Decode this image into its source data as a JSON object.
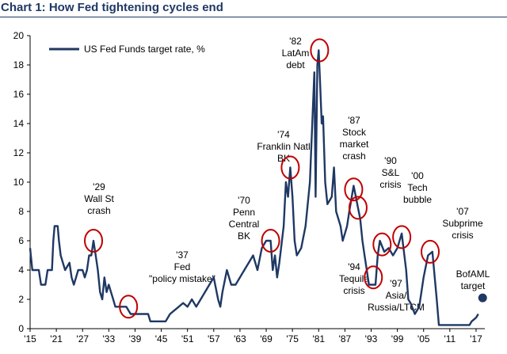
{
  "title": "Chart 1: How Fed tightening cycles end",
  "colors": {
    "series": "#1f3864",
    "circle": "#c00000",
    "title": "#1f3864"
  },
  "chart_data": {
    "type": "line",
    "title": "Chart 1: How Fed tightening cycles end",
    "xlabel": "",
    "ylabel": "",
    "xlim": [
      1915,
      2019
    ],
    "ylim": [
      0,
      20
    ],
    "yticks": [
      "0",
      "2",
      "4",
      "6",
      "8",
      "10",
      "12",
      "14",
      "16",
      "18",
      "20"
    ],
    "xticks": [
      {
        "x": 1915,
        "label": "'15"
      },
      {
        "x": 1921,
        "label": "'21"
      },
      {
        "x": 1927,
        "label": "'27"
      },
      {
        "x": 1933,
        "label": "'33"
      },
      {
        "x": 1939,
        "label": "'39"
      },
      {
        "x": 1945,
        "label": "'45"
      },
      {
        "x": 1951,
        "label": "'51"
      },
      {
        "x": 1957,
        "label": "'57"
      },
      {
        "x": 1963,
        "label": "'63"
      },
      {
        "x": 1969,
        "label": "'69"
      },
      {
        "x": 1975,
        "label": "'75"
      },
      {
        "x": 1981,
        "label": "'81"
      },
      {
        "x": 1987,
        "label": "'87"
      },
      {
        "x": 1993,
        "label": "'93"
      },
      {
        "x": 1999,
        "label": "'99"
      },
      {
        "x": 2005,
        "label": "'05"
      },
      {
        "x": 2011,
        "label": "'11"
      },
      {
        "x": 2017,
        "label": "'17"
      }
    ],
    "grid": false,
    "legend": {
      "position": "top-left",
      "entries": [
        "US Fed Funds target rate, %"
      ]
    },
    "series": [
      {
        "name": "US Fed Funds target rate, %",
        "points": [
          [
            1915,
            5.5
          ],
          [
            1915.5,
            4
          ],
          [
            1917,
            4
          ],
          [
            1917.5,
            3
          ],
          [
            1918.5,
            3
          ],
          [
            1919,
            4
          ],
          [
            1920,
            4
          ],
          [
            1920.3,
            6
          ],
          [
            1920.6,
            7
          ],
          [
            1921.3,
            7
          ],
          [
            1921.6,
            6
          ],
          [
            1922,
            5
          ],
          [
            1922.5,
            4.5
          ],
          [
            1923,
            4
          ],
          [
            1924,
            4.5
          ],
          [
            1924.5,
            3.5
          ],
          [
            1925,
            3
          ],
          [
            1925.5,
            3.5
          ],
          [
            1926,
            4
          ],
          [
            1927,
            4
          ],
          [
            1927.5,
            3.5
          ],
          [
            1928,
            4
          ],
          [
            1928.5,
            5
          ],
          [
            1929,
            5
          ],
          [
            1929.5,
            6
          ],
          [
            1930,
            5
          ],
          [
            1930.5,
            4
          ],
          [
            1931,
            2.5
          ],
          [
            1931.5,
            2
          ],
          [
            1932,
            3.5
          ],
          [
            1932.5,
            2.5
          ],
          [
            1933,
            3
          ],
          [
            1933.5,
            2.5
          ],
          [
            1934,
            2
          ],
          [
            1934.5,
            1.5
          ],
          [
            1936,
            1.5
          ],
          [
            1937,
            1.5
          ],
          [
            1938,
            1
          ],
          [
            1939,
            1
          ],
          [
            1941,
            1
          ],
          [
            1942,
            1
          ],
          [
            1942.5,
            0.5
          ],
          [
            1946,
            0.5
          ],
          [
            1947,
            1
          ],
          [
            1948,
            1.25
          ],
          [
            1949,
            1.5
          ],
          [
            1950,
            1.75
          ],
          [
            1951,
            1.5
          ],
          [
            1952,
            2
          ],
          [
            1953,
            1.5
          ],
          [
            1954,
            2
          ],
          [
            1955,
            2.5
          ],
          [
            1956,
            3
          ],
          [
            1957,
            3.5
          ],
          [
            1958,
            2
          ],
          [
            1958.5,
            1.5
          ],
          [
            1959,
            2.5
          ],
          [
            1960,
            4
          ],
          [
            1961,
            3
          ],
          [
            1962,
            3
          ],
          [
            1963,
            3.5
          ],
          [
            1964,
            4
          ],
          [
            1965,
            4.5
          ],
          [
            1966,
            5
          ],
          [
            1967,
            4
          ],
          [
            1968,
            5.5
          ],
          [
            1969,
            6
          ],
          [
            1970,
            6
          ],
          [
            1970.5,
            4
          ],
          [
            1971,
            5
          ],
          [
            1971.5,
            3.5
          ],
          [
            1972,
            4.5
          ],
          [
            1973,
            7
          ],
          [
            1973.5,
            10
          ],
          [
            1974,
            9
          ],
          [
            1974.5,
            11
          ],
          [
            1975,
            9
          ],
          [
            1975.5,
            6
          ],
          [
            1976,
            5
          ],
          [
            1977,
            5.5
          ],
          [
            1978,
            7
          ],
          [
            1979,
            10
          ],
          [
            1980,
            17.5
          ],
          [
            1980.3,
            9
          ],
          [
            1980.7,
            18
          ],
          [
            1981,
            19
          ],
          [
            1981.3,
            17
          ],
          [
            1981.7,
            14
          ],
          [
            1982,
            14.5
          ],
          [
            1982.5,
            10
          ],
          [
            1983,
            8.5
          ],
          [
            1984,
            9
          ],
          [
            1984.5,
            11
          ],
          [
            1985,
            8
          ],
          [
            1986,
            7
          ],
          [
            1986.5,
            6
          ],
          [
            1987,
            6.5
          ],
          [
            1987.5,
            7
          ],
          [
            1988,
            8
          ],
          [
            1989,
            9.75
          ],
          [
            1989.5,
            9
          ],
          [
            1990,
            8.25
          ],
          [
            1990.5,
            7.5
          ],
          [
            1991,
            6
          ],
          [
            1991.5,
            5
          ],
          [
            1992,
            4
          ],
          [
            1992.5,
            3
          ],
          [
            1994,
            3
          ],
          [
            1994.5,
            5
          ],
          [
            1995,
            6
          ],
          [
            1996,
            5.25
          ],
          [
            1997,
            5.5
          ],
          [
            1998,
            5
          ],
          [
            1999,
            5.5
          ],
          [
            2000,
            6.5
          ],
          [
            2001,
            4
          ],
          [
            2001.5,
            2
          ],
          [
            2002,
            1.75
          ],
          [
            2003,
            1
          ],
          [
            2004,
            1.5
          ],
          [
            2005,
            3.5
          ],
          [
            2006,
            5
          ],
          [
            2007,
            5.25
          ],
          [
            2008,
            2
          ],
          [
            2008.5,
            0.25
          ],
          [
            2015.5,
            0.25
          ],
          [
            2016,
            0.5
          ],
          [
            2017,
            0.75
          ],
          [
            2017.5,
            1
          ]
        ]
      }
    ],
    "highlights": [
      {
        "x": 1929.5,
        "y": 6,
        "label": [
          "'29",
          "Wall St",
          "crash"
        ]
      },
      {
        "x": 1937.5,
        "y": 1.5,
        "label": [
          "'37",
          "Fed",
          "\"policy mistake\""
        ]
      },
      {
        "x": 1970,
        "y": 6,
        "label": [
          "'70",
          "Penn",
          "Central",
          "BK"
        ]
      },
      {
        "x": 1974.5,
        "y": 11,
        "label": [
          "'74",
          "Franklin Natl",
          "BK"
        ]
      },
      {
        "x": 1981.2,
        "y": 19,
        "label": [
          "'82",
          "LatAm",
          "debt"
        ]
      },
      {
        "x": 1989,
        "y": 9.5,
        "label": [
          "'87",
          "Stock",
          "market",
          "crash"
        ]
      },
      {
        "x": 1990,
        "y": 8.25,
        "label": [
          "'90",
          "S&L",
          "crisis"
        ]
      },
      {
        "x": 1993.5,
        "y": 3.5,
        "label": [
          "'94",
          "Tequila",
          "crisis"
        ]
      },
      {
        "x": 1995.5,
        "y": 5.75,
        "label": [
          "'97",
          "Asia/",
          "Russia/LTCM"
        ]
      },
      {
        "x": 2000,
        "y": 6.25,
        "label": [
          "'00",
          "Tech",
          "bubble"
        ]
      },
      {
        "x": 2006.5,
        "y": 5.25,
        "label": [
          "'07",
          "Subprime",
          "crisis"
        ]
      }
    ],
    "forecast": {
      "x": 2018.5,
      "y": 2.1,
      "label": [
        "BofAML",
        "target"
      ]
    }
  }
}
